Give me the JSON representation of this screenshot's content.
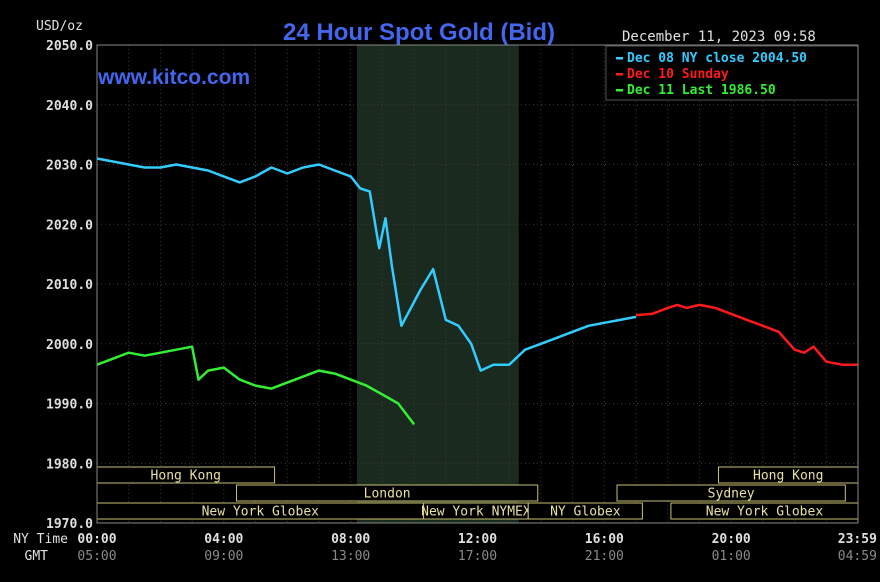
{
  "chart_data": {
    "type": "line",
    "title": "24 Hour Spot Gold (Bid)",
    "ylabel": "USD/oz",
    "watermark": "www.kitco.com",
    "timestamp": "December 11, 2023 09:58",
    "ylim": [
      1970,
      2050
    ],
    "yticks": [
      "2050.0",
      "2040.0",
      "2030.0",
      "2020.0",
      "2010.0",
      "2000.0",
      "1990.0",
      "1980.0",
      "1970.0"
    ],
    "xlim": [
      0,
      24
    ],
    "x_axis_label": "NY Time",
    "gmt_axis_label": "GMT",
    "ny_ticks": [
      "00:00",
      "04:00",
      "08:00",
      "12:00",
      "16:00",
      "20:00",
      "23:59"
    ],
    "gmt_ticks": [
      "05:00",
      "09:00",
      "13:00",
      "17:00",
      "21:00",
      "01:00",
      "04:59"
    ],
    "tick_hours": [
      0,
      4,
      8,
      12,
      16,
      20,
      23.98
    ],
    "shaded_session": [
      8.2,
      13.3
    ],
    "grid": true,
    "legend": [
      {
        "label": "Dec 08 NY close 2004.50",
        "color": "#33ccff"
      },
      {
        "label": "Dec 10 Sunday",
        "color": "#ff1a1a"
      },
      {
        "label": "Dec 11 Last 1986.50",
        "color": "#33ee33"
      }
    ],
    "series": [
      {
        "color": "#33ccff",
        "x": [
          0,
          0.5,
          1,
          1.5,
          2,
          2.5,
          3,
          3.5,
          4,
          4.5,
          5,
          5.5,
          6,
          6.5,
          7,
          7.5,
          8,
          8.3,
          8.6,
          8.9,
          9.1,
          9.3,
          9.6,
          9.9,
          10.2,
          10.6,
          11,
          11.4,
          11.8,
          12.1,
          12.5,
          13,
          13.5,
          14,
          14.5,
          15,
          15.5,
          16,
          16.5,
          17
        ],
        "values": [
          2031,
          2030.5,
          2030,
          2029.5,
          2029.5,
          2030,
          2029.5,
          2029,
          2028,
          2027,
          2028,
          2029.5,
          2028.5,
          2029.5,
          2030,
          2029,
          2028,
          2026,
          2025.5,
          2016,
          2021,
          2013,
          2003,
          2006,
          2009,
          2012.5,
          2004,
          2003,
          2000,
          1995.5,
          1996.5,
          1996.5,
          1999,
          2000,
          2001,
          2002,
          2003,
          2003.5,
          2004,
          2004.5
        ]
      },
      {
        "color": "#ff1a1a",
        "x": [
          17,
          17.5,
          18,
          18.3,
          18.6,
          19,
          19.5,
          20,
          20.5,
          21,
          21.5,
          22,
          22.3,
          22.6,
          23,
          23.5,
          24
        ],
        "values": [
          2004.8,
          2005,
          2006,
          2006.5,
          2006,
          2006.5,
          2006,
          2005,
          2004,
          2003,
          2002,
          1999,
          1998.5,
          1999.5,
          1997,
          1996.5,
          1996.5
        ]
      },
      {
        "color": "#33ee33",
        "x": [
          0,
          0.5,
          1,
          1.5,
          2,
          2.5,
          3,
          3.2,
          3.5,
          4,
          4.5,
          5,
          5.5,
          6,
          6.5,
          7,
          7.5,
          8,
          8.5,
          9,
          9.5,
          10
        ],
        "values": [
          1996.5,
          1997.5,
          1998.5,
          1998,
          1998.5,
          1999,
          1999.5,
          1994,
          1995.5,
          1996,
          1994,
          1993,
          1992.5,
          1993.5,
          1994.5,
          1995.5,
          1995,
          1994,
          1993,
          1991.5,
          1990,
          1986.5
        ]
      }
    ],
    "market_rows": [
      [
        {
          "label": "Hong Kong",
          "start": 0,
          "end": 5.6
        },
        {
          "label": "Hong Kong",
          "start": 19.6,
          "end": 24
        }
      ],
      [
        {
          "label": "London",
          "start": 4.4,
          "end": 13.9
        },
        {
          "label": "Sydney",
          "start": 16.4,
          "end": 23.6
        }
      ],
      [
        {
          "label": "New York Globex",
          "start": 0,
          "end": 10.3
        },
        {
          "label": "New York NYMEX",
          "start": 10.3,
          "end": 13.6
        },
        {
          "label": "NY Globex",
          "start": 13.6,
          "end": 17.2
        },
        {
          "label": "New York Globex",
          "start": 18.1,
          "end": 24
        }
      ]
    ]
  }
}
